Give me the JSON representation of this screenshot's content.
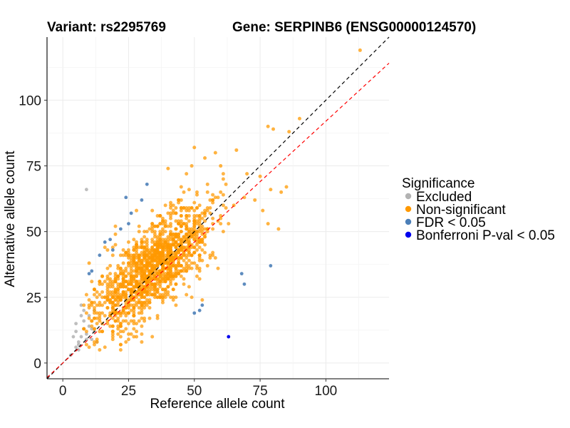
{
  "header": {
    "variant_title": "Variant: rs2295769",
    "gene_title": "Gene: SERPINB6 (ENSG00000124570)"
  },
  "chart_data": {
    "type": "scatter",
    "xlabel": "Reference allele count",
    "ylabel": "Alternative allele count",
    "xlim": [
      -6,
      124
    ],
    "ylim": [
      -6,
      124
    ],
    "x_ticks": [
      0,
      25,
      50,
      75,
      100
    ],
    "y_ticks": [
      0,
      25,
      50,
      75,
      100
    ],
    "grid": true,
    "legend": {
      "title": "Significance",
      "placement": "right",
      "entries": [
        {
          "label": "Excluded",
          "color": "#b3b3b3"
        },
        {
          "label": "Non-significant",
          "color": "#ff9900"
        },
        {
          "label": "FDR < 0.05",
          "color": "#4c7fb8"
        },
        {
          "label": "Bonferroni P-val < 0.05",
          "color": "#0000ee"
        }
      ]
    },
    "reference_lines": [
      {
        "style": "dashed",
        "color": "#000000",
        "slope": 1.0,
        "intercept": 0
      },
      {
        "style": "dashed",
        "color": "#ff0000",
        "slope": 0.92,
        "intercept": 0
      }
    ],
    "series": [
      {
        "name": "Excluded",
        "color": "#b3b3b3",
        "points": [
          [
            5,
            15
          ],
          [
            6,
            8
          ],
          [
            5,
            6
          ],
          [
            7,
            22
          ],
          [
            9,
            66
          ],
          [
            8,
            13
          ],
          [
            7,
            10
          ],
          [
            9,
            11
          ],
          [
            10,
            14
          ],
          [
            11,
            9
          ],
          [
            12,
            12
          ],
          [
            6,
            5
          ],
          [
            8,
            16
          ],
          [
            4,
            10
          ],
          [
            10,
            18
          ],
          [
            12,
            20
          ],
          [
            3,
            3
          ],
          [
            6,
            7
          ],
          [
            9,
            9
          ],
          [
            11,
            13
          ],
          [
            8,
            20
          ],
          [
            13,
            8
          ],
          [
            5,
            12
          ],
          [
            7,
            18
          ]
        ]
      },
      {
        "name": "Non-significant",
        "color": "#ff9900",
        "points": [
          [
            113,
            119
          ],
          [
            90,
            93
          ],
          [
            86,
            88
          ],
          [
            80,
            89
          ],
          [
            78,
            90
          ],
          [
            66,
            81
          ],
          [
            58,
            80
          ],
          [
            54,
            78
          ],
          [
            50,
            82
          ],
          [
            60,
            75
          ],
          [
            70,
            72
          ],
          [
            75,
            71
          ],
          [
            79,
            66
          ],
          [
            85,
            67
          ],
          [
            83,
            65
          ],
          [
            73,
            62
          ],
          [
            76,
            58
          ],
          [
            78,
            53
          ],
          [
            82,
            51
          ],
          [
            65,
            60
          ],
          [
            40,
            74
          ],
          [
            10,
            38
          ],
          [
            12,
            28
          ],
          [
            14,
            30
          ],
          [
            15,
            33
          ],
          [
            20,
            49
          ]
        ]
      },
      {
        "name": "FDR < 0.05",
        "color": "#4c7fb8",
        "points": [
          [
            32,
            68
          ],
          [
            26,
            57
          ],
          [
            25,
            53
          ],
          [
            24,
            63
          ],
          [
            22,
            51
          ],
          [
            18,
            47
          ],
          [
            16,
            46
          ],
          [
            19,
            43
          ],
          [
            14,
            41
          ],
          [
            11,
            35
          ],
          [
            10,
            34
          ],
          [
            79,
            37
          ],
          [
            69,
            30
          ],
          [
            68,
            34
          ],
          [
            50,
            19
          ],
          [
            52,
            20
          ],
          [
            53,
            22
          ],
          [
            30,
            62
          ]
        ]
      },
      {
        "name": "Bonferroni P-val < 0.05",
        "color": "#0000ee",
        "points": [
          [
            63,
            10
          ]
        ]
      }
    ],
    "bulk_cloud": {
      "series": "Non-significant",
      "center": [
        34,
        36
      ],
      "count": 1500
    }
  }
}
